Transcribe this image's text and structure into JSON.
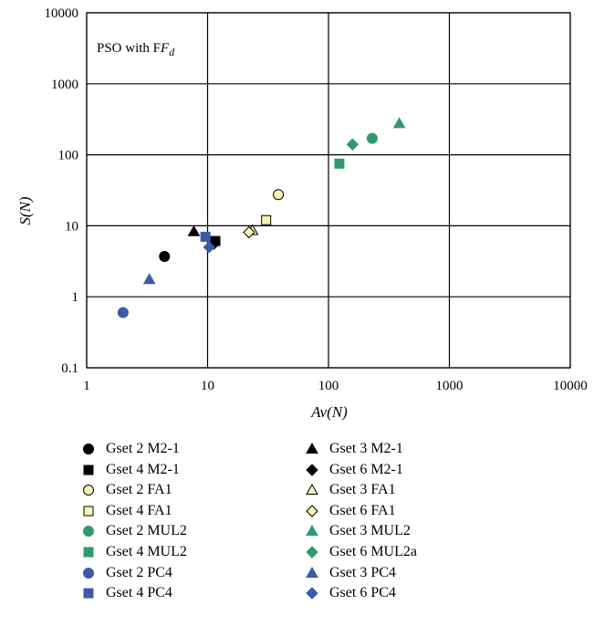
{
  "chart_data": {
    "type": "scatter",
    "annotation": "PSO with F",
    "annotation_subscript": "d",
    "xlabel": "Av(N)",
    "ylabel": "S(N)",
    "xscale": "log",
    "yscale": "log",
    "xlim": [
      1,
      10000
    ],
    "ylim": [
      0.1,
      10000
    ],
    "xticks": [
      "1",
      "10",
      "100",
      "1000",
      "10000"
    ],
    "yticks": [
      "0.1",
      "1",
      "10",
      "100",
      "1000",
      "10000"
    ],
    "grid": true,
    "legend_position": "bottom",
    "series": [
      {
        "name": "Gset 2 M2-1",
        "marker": "circle",
        "fill": "#000000",
        "stroke": "#000000",
        "points": [
          [
            4.4,
            3.7
          ]
        ]
      },
      {
        "name": "Gset 3 M2-1",
        "marker": "triangle",
        "fill": "#000000",
        "stroke": "#000000",
        "points": [
          [
            7.7,
            8.3
          ]
        ]
      },
      {
        "name": "Gset 4 M2-1",
        "marker": "square",
        "fill": "#000000",
        "stroke": "#000000",
        "points": [
          [
            11.6,
            6.1
          ]
        ]
      },
      {
        "name": "Gset 6 M2-1",
        "marker": "diamond",
        "fill": "#000000",
        "stroke": "#000000",
        "points": [
          [
            11.3,
            5.6
          ]
        ]
      },
      {
        "name": "Gset 2 FA1",
        "marker": "circle",
        "fill": "#f7f3b4",
        "stroke": "#000000",
        "points": [
          [
            38.5,
            27.5
          ]
        ]
      },
      {
        "name": "Gset 3 FA1",
        "marker": "triangle",
        "fill": "#f7f3b4",
        "stroke": "#000000",
        "points": [
          [
            23.5,
            8.6
          ]
        ]
      },
      {
        "name": "Gset 4 FA1",
        "marker": "square",
        "fill": "#f7f3b4",
        "stroke": "#000000",
        "points": [
          [
            30.5,
            12.0
          ]
        ]
      },
      {
        "name": "Gset 6 FA1",
        "marker": "diamond",
        "fill": "#f7f3b4",
        "stroke": "#000000",
        "points": [
          [
            22.0,
            8.1
          ]
        ]
      },
      {
        "name": "Gset 2 MUL2",
        "marker": "circle",
        "fill": "#2e9a6b",
        "stroke": "#2e9a6b",
        "points": [
          [
            230,
            170
          ]
        ]
      },
      {
        "name": "Gset 3 MUL2",
        "marker": "triangle",
        "fill": "#2e9a6b",
        "stroke": "#2e9a6b",
        "points": [
          [
            385,
            275
          ]
        ]
      },
      {
        "name": "Gset 4 MUL2",
        "marker": "square",
        "fill": "#2e9a6b",
        "stroke": "#2e9a6b",
        "points": [
          [
            123,
            75
          ]
        ]
      },
      {
        "name": "Gset 6 MUL2a",
        "marker": "diamond",
        "fill": "#2e9a6b",
        "stroke": "#2e9a6b",
        "points": [
          [
            158,
            140
          ]
        ]
      },
      {
        "name": "Gset 2 PC4",
        "marker": "circle",
        "fill": "#3a5ca8",
        "stroke": "#3a5ca8",
        "points": [
          [
            2.0,
            0.6
          ]
        ]
      },
      {
        "name": "Gset 3 PC4",
        "marker": "triangle",
        "fill": "#3a5ca8",
        "stroke": "#3a5ca8",
        "points": [
          [
            3.3,
            1.75
          ]
        ]
      },
      {
        "name": "Gset 4 PC4",
        "marker": "square",
        "fill": "#3a5ca8",
        "stroke": "#3a5ca8",
        "points": [
          [
            9.6,
            7.0
          ]
        ]
      },
      {
        "name": "Gset 6 PC4",
        "marker": "diamond",
        "fill": "#3a5ca8",
        "stroke": "#3a5ca8",
        "points": [
          [
            10.3,
            5.0
          ]
        ]
      }
    ]
  }
}
